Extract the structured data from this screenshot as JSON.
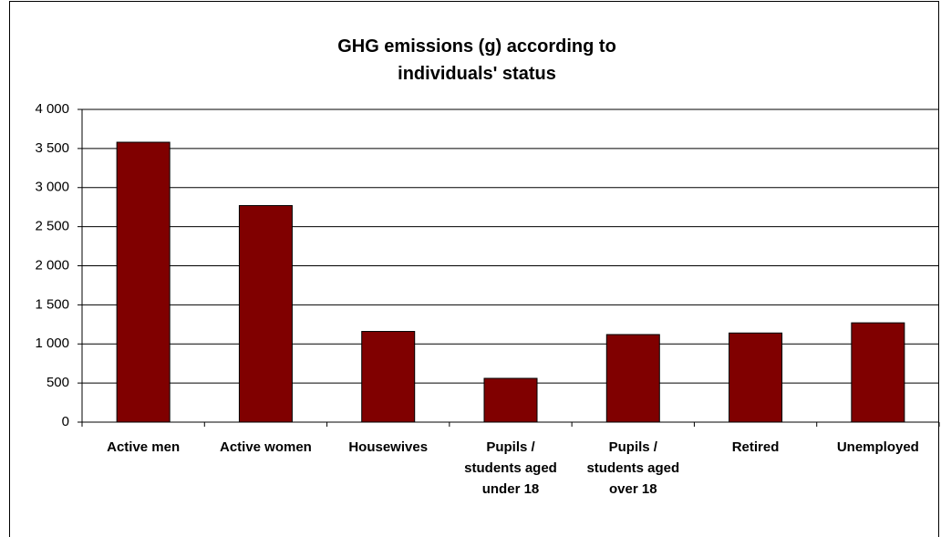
{
  "chart_data": {
    "type": "bar",
    "title": "GHG emissions (g) according to individuals' status",
    "categories": [
      "Active men",
      "Active women",
      "Housewives",
      "Pupils / students aged under 18",
      "Pupils / students aged over 18",
      "Retired",
      "Unemployed"
    ],
    "values": [
      3580,
      2770,
      1160,
      560,
      1120,
      1140,
      1270
    ],
    "color": "#800000",
    "ylim": [
      0,
      4000
    ],
    "yticks": [
      0,
      500,
      {
        "value": 1000,
        "label": "1 000"
      },
      {
        "value": 1500,
        "label": "1 500"
      },
      {
        "value": 2000,
        "label": "2 000"
      },
      {
        "value": 2500,
        "label": "2 500"
      },
      {
        "value": 3000,
        "label": "3 000"
      },
      {
        "value": 3500,
        "label": "3 500"
      },
      {
        "value": 4000,
        "label": "4 000"
      }
    ],
    "grid": true
  }
}
